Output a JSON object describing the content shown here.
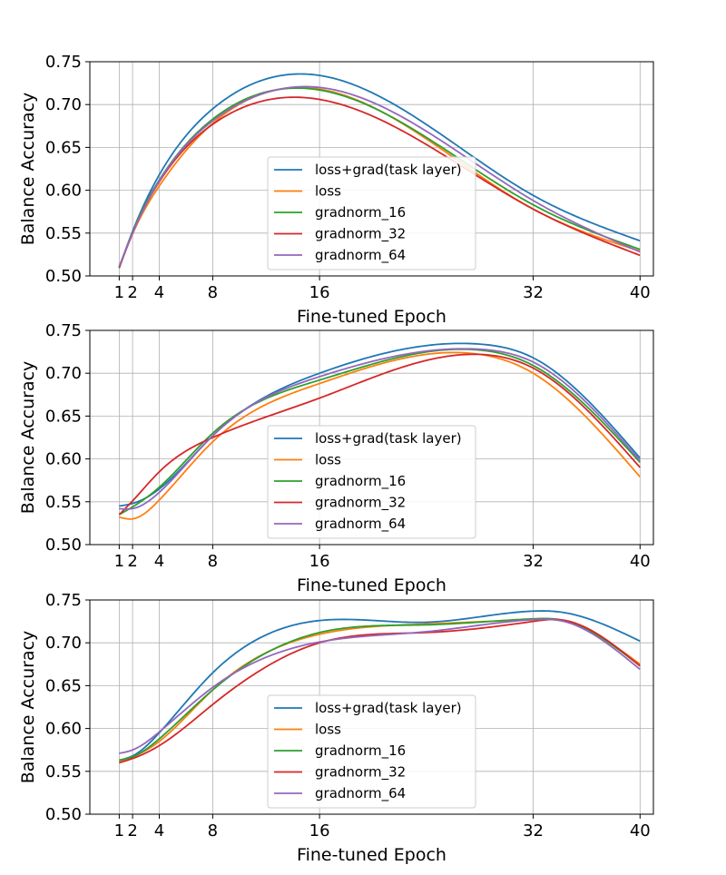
{
  "figure": {
    "colors": {
      "loss+grad(task layer)": "#1f77b4",
      "loss": "#ff7f0e",
      "gradnorm_16": "#2ca02c",
      "gradnorm_32": "#d62728",
      "gradnorm_64": "#9467bd"
    }
  },
  "chart_data": [
    {
      "type": "line",
      "title": "",
      "xlabel": "Fine-tuned Epoch",
      "ylabel": "Balance Accuracy",
      "xlim": [
        -1.2,
        41.0
      ],
      "ylim": [
        0.5,
        0.75
      ],
      "xticks": [
        1,
        2,
        4,
        8,
        16,
        32,
        40
      ],
      "xtick_labels": [
        "1",
        "2",
        "4",
        "8",
        "16",
        "32",
        "40"
      ],
      "yticks": [
        0.5,
        0.55,
        0.6,
        0.65,
        0.7,
        0.75
      ],
      "ytick_labels": [
        "0.50",
        "0.55",
        "0.60",
        "0.65",
        "0.70",
        "0.75"
      ],
      "grid": true,
      "legend_position": "lower-center",
      "x": [
        1,
        2,
        4,
        8,
        16,
        32,
        40
      ],
      "series": [
        {
          "name": "loss+grad(task layer)",
          "values": [
            0.51,
            0.552,
            0.618,
            0.695,
            0.734,
            0.594,
            0.541
          ]
        },
        {
          "name": "loss",
          "values": [
            0.51,
            0.549,
            0.605,
            0.678,
            0.718,
            0.578,
            0.529
          ]
        },
        {
          "name": "gradnorm_16",
          "values": [
            0.509,
            0.551,
            0.612,
            0.683,
            0.717,
            0.583,
            0.531
          ]
        },
        {
          "name": "gradnorm_32",
          "values": [
            0.51,
            0.55,
            0.61,
            0.677,
            0.706,
            0.578,
            0.524
          ]
        },
        {
          "name": "gradnorm_64",
          "values": [
            0.511,
            0.55,
            0.611,
            0.681,
            0.72,
            0.588,
            0.528
          ]
        }
      ]
    },
    {
      "type": "line",
      "title": "",
      "xlabel": "Fine-tuned Epoch",
      "ylabel": "Balance Accuracy",
      "xlim": [
        -1.2,
        41.0
      ],
      "ylim": [
        0.5,
        0.75
      ],
      "xticks": [
        1,
        2,
        4,
        8,
        16,
        32,
        40
      ],
      "xtick_labels": [
        "1",
        "2",
        "4",
        "8",
        "16",
        "32",
        "40"
      ],
      "yticks": [
        0.5,
        0.55,
        0.6,
        0.65,
        0.7,
        0.75
      ],
      "ytick_labels": [
        "0.50",
        "0.55",
        "0.60",
        "0.65",
        "0.70",
        "0.75"
      ],
      "grid": true,
      "legend_position": "lower-center",
      "x": [
        1,
        2,
        4,
        8,
        16,
        28,
        32,
        40
      ],
      "series": [
        {
          "name": "loss+grad(task layer)",
          "values": [
            0.545,
            0.548,
            0.565,
            0.627,
            0.7,
            0.734,
            0.718,
            0.601
          ]
        },
        {
          "name": "loss",
          "values": [
            0.532,
            0.53,
            0.552,
            0.62,
            0.688,
            0.722,
            0.7,
            0.579
          ]
        },
        {
          "name": "gradnorm_16",
          "values": [
            0.535,
            0.544,
            0.567,
            0.63,
            0.692,
            0.727,
            0.709,
            0.596
          ]
        },
        {
          "name": "gradnorm_32",
          "values": [
            0.535,
            0.551,
            0.585,
            0.625,
            0.671,
            0.722,
            0.706,
            0.59
          ]
        },
        {
          "name": "gradnorm_64",
          "values": [
            0.542,
            0.542,
            0.561,
            0.627,
            0.696,
            0.728,
            0.713,
            0.598
          ]
        }
      ]
    },
    {
      "type": "line",
      "title": "",
      "xlabel": "Fine-tuned Epoch",
      "ylabel": "Balance Accuracy",
      "xlim": [
        -1.2,
        41.0
      ],
      "ylim": [
        0.5,
        0.75
      ],
      "xticks": [
        1,
        2,
        4,
        8,
        16,
        32,
        40
      ],
      "xtick_labels": [
        "1",
        "2",
        "4",
        "8",
        "16",
        "32",
        "40"
      ],
      "yticks": [
        0.5,
        0.55,
        0.6,
        0.65,
        0.7,
        0.75
      ],
      "ytick_labels": [
        "0.50",
        "0.55",
        "0.60",
        "0.65",
        "0.70",
        "0.75"
      ],
      "grid": true,
      "legend_position": "lower-center",
      "x": [
        1,
        2,
        4,
        8,
        16,
        24,
        32,
        34,
        40
      ],
      "series": [
        {
          "name": "loss+grad(task layer)",
          "values": [
            0.563,
            0.568,
            0.595,
            0.665,
            0.726,
            0.724,
            0.737,
            0.736,
            0.702
          ]
        },
        {
          "name": "loss",
          "values": [
            0.562,
            0.567,
            0.585,
            0.645,
            0.71,
            0.722,
            0.727,
            0.726,
            0.675
          ]
        },
        {
          "name": "gradnorm_16",
          "values": [
            0.563,
            0.567,
            0.588,
            0.645,
            0.712,
            0.721,
            0.728,
            0.727,
            0.673
          ]
        },
        {
          "name": "gradnorm_32",
          "values": [
            0.56,
            0.565,
            0.58,
            0.628,
            0.7,
            0.712,
            0.725,
            0.727,
            0.673
          ]
        },
        {
          "name": "gradnorm_64",
          "values": [
            0.571,
            0.575,
            0.596,
            0.648,
            0.701,
            0.713,
            0.727,
            0.726,
            0.669
          ]
        }
      ]
    }
  ]
}
